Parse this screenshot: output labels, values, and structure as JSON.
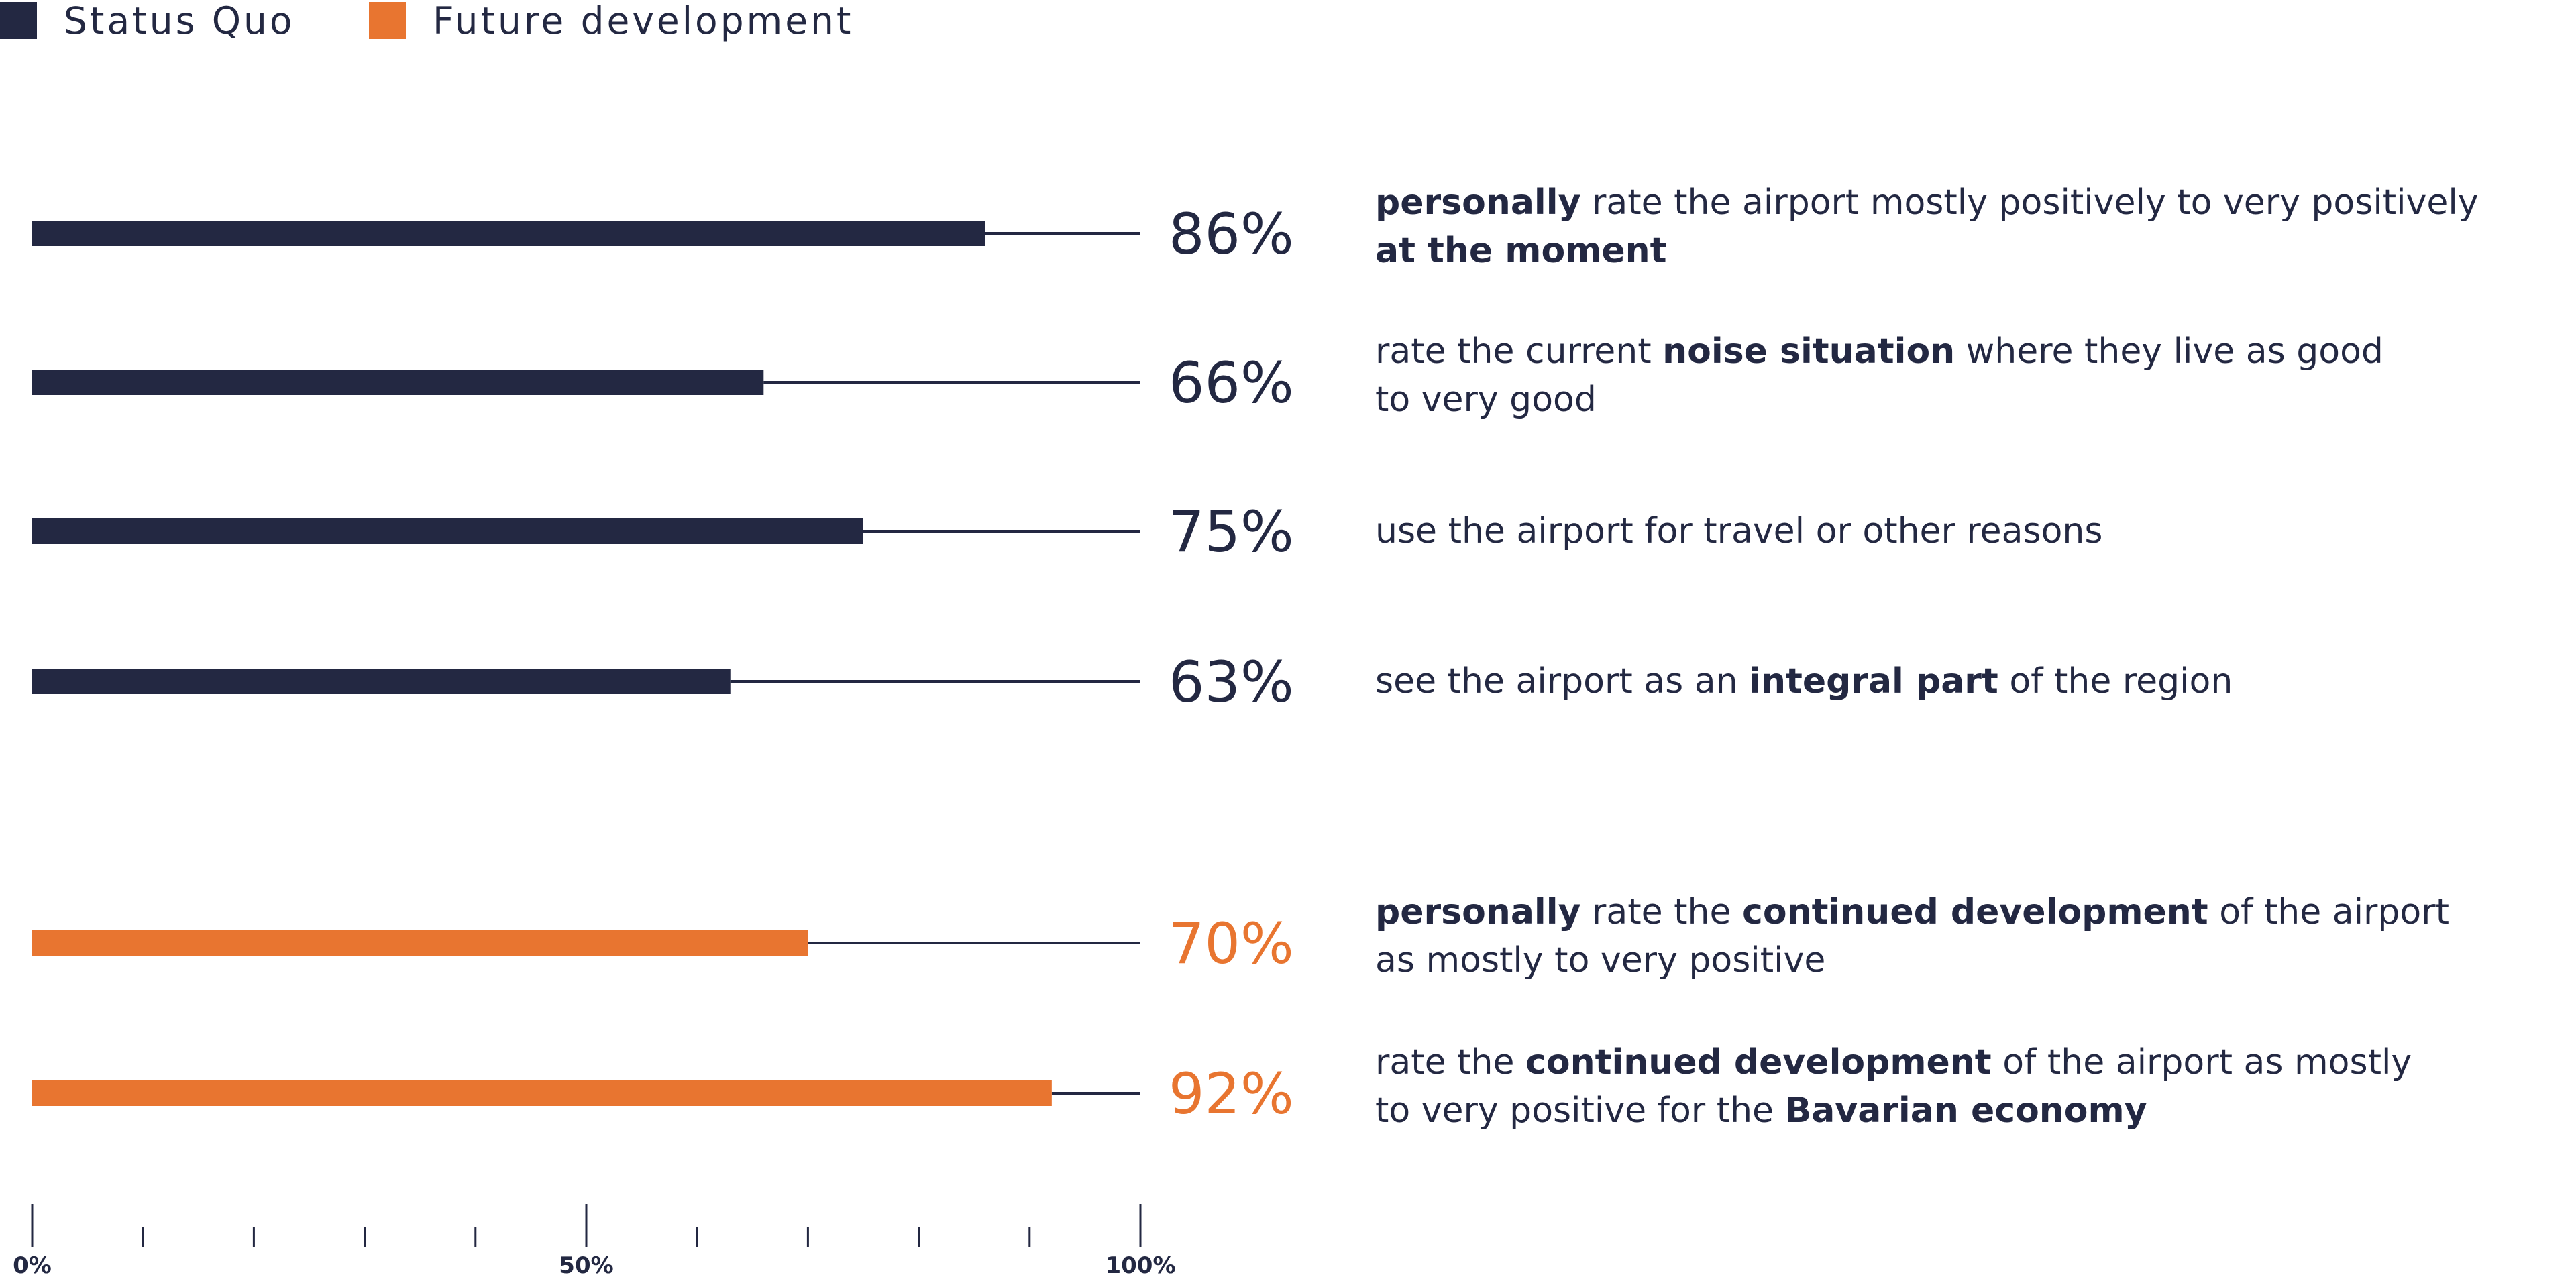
{
  "chart_data": {
    "type": "bar",
    "orientation": "horizontal",
    "legend": [
      {
        "label": "Status Quo",
        "color": "#232842"
      },
      {
        "label": "Future development",
        "color": "#E87530"
      }
    ],
    "xlim": [
      0,
      100
    ],
    "x_tick_labels": [
      "0%",
      "50%",
      "100%"
    ],
    "series": [
      {
        "name": "Status Quo",
        "color": "#232842",
        "items": [
          {
            "value": 86,
            "label": "86%",
            "text": [
              [
                {
                  "t": "personally",
                  "b": true
                },
                {
                  "t": " rate the airport mostly positively to very positively"
                }
              ],
              [
                {
                  "t": "at the moment",
                  "b": true
                }
              ]
            ]
          },
          {
            "value": 66,
            "label": "66%",
            "text": [
              [
                {
                  "t": "rate the current "
                },
                {
                  "t": "noise situation",
                  "b": true
                },
                {
                  "t": " where they live as good"
                }
              ],
              [
                {
                  "t": "to very good"
                }
              ]
            ]
          },
          {
            "value": 75,
            "label": "75%",
            "text": [
              [
                {
                  "t": "use the airport for travel or other reasons"
                }
              ]
            ]
          },
          {
            "value": 63,
            "label": "63%",
            "text": [
              [
                {
                  "t": "see the airport as an "
                },
                {
                  "t": "integral part",
                  "b": true
                },
                {
                  "t": " of the region"
                }
              ]
            ]
          }
        ]
      },
      {
        "name": "Future development",
        "color": "#E87530",
        "items": [
          {
            "value": 70,
            "label": "70%",
            "text": [
              [
                {
                  "t": "personally",
                  "b": true
                },
                {
                  "t": " rate the "
                },
                {
                  "t": "continued development",
                  "b": true
                },
                {
                  "t": " of the airport"
                }
              ],
              [
                {
                  "t": "as mostly to very positive"
                }
              ]
            ]
          },
          {
            "value": 92,
            "label": "92%",
            "text": [
              [
                {
                  "t": "rate the "
                },
                {
                  "t": "continued development",
                  "b": true
                },
                {
                  "t": " of the airport as mostly"
                }
              ],
              [
                {
                  "t": "to very positive for the "
                },
                {
                  "t": "Bavarian economy",
                  "b": true
                }
              ]
            ]
          }
        ]
      }
    ]
  }
}
